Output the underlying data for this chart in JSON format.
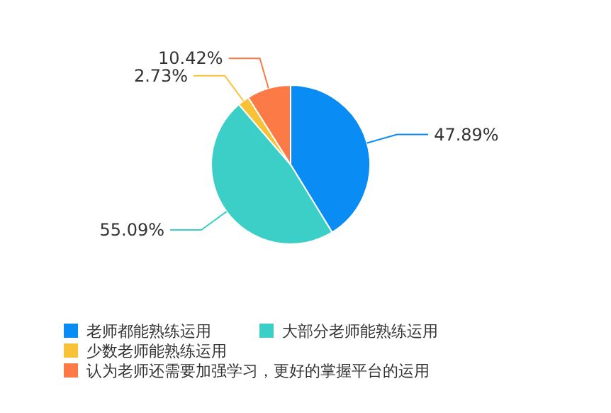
{
  "chart_data": {
    "type": "pie",
    "categories": [
      "老师都能熟练运用",
      "大部分老师能熟练运用",
      "少数老师能熟练运用",
      "认为老师还需要加强学习，更好的掌握平台的运用"
    ],
    "values": [
      47.89,
      55.09,
      2.73,
      10.42
    ],
    "colors": [
      "#0a8cf5",
      "#3ccfc8",
      "#f8c236",
      "#fb7a45"
    ],
    "value_labels": [
      "47.89%",
      "55.09%",
      "2.73%",
      "10.42%"
    ],
    "legend": "bottom"
  }
}
